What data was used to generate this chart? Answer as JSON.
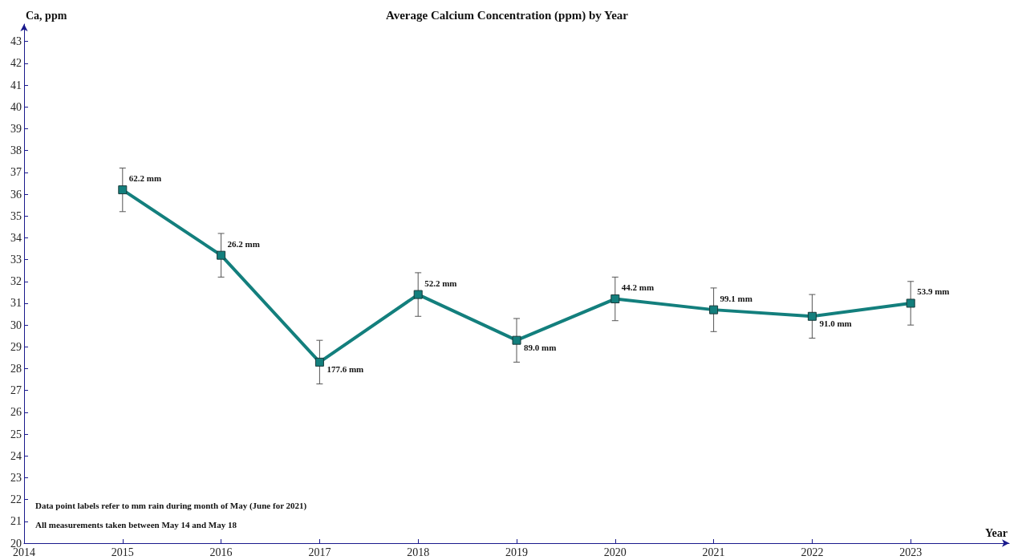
{
  "chart_data": {
    "type": "line",
    "title": "Average Calcium Concentration (ppm) by Year",
    "xlabel": "Year",
    "ylabel": "Ca, ppm",
    "x": [
      2015,
      2016,
      2017,
      2018,
      2019,
      2020,
      2021,
      2022,
      2023
    ],
    "series": [
      {
        "color": "#137f7d",
        "values": [
          36.2,
          33.2,
          28.3,
          31.4,
          29.3,
          31.2,
          30.7,
          30.4,
          31.0
        ],
        "errors": [
          1.0,
          1.0,
          1.0,
          1.0,
          1.0,
          1.0,
          1.0,
          1.0,
          1.0
        ]
      }
    ],
    "xlim": [
      2014,
      2024
    ],
    "xticks": [
      2014,
      2015,
      2016,
      2017,
      2018,
      2019,
      2020,
      2021,
      2022,
      2023
    ],
    "ylim": [
      20,
      43.8
    ],
    "yticks": [
      20,
      21,
      22,
      23,
      24,
      25,
      26,
      27,
      28,
      29,
      30,
      31,
      32,
      33,
      34,
      35,
      36,
      37,
      38,
      39,
      40,
      41,
      42,
      43
    ],
    "marker": "square",
    "line_style": "solid",
    "grid": false,
    "annotations": [
      {
        "text": "62.2 mm",
        "x": 2015,
        "y": 36.2
      },
      {
        "text": "26.2 mm",
        "x": 2016,
        "y": 33.2
      },
      {
        "text": "177.6 mm",
        "x": 2017,
        "y": 28.3
      },
      {
        "text": "52.2 mm",
        "x": 2018,
        "y": 31.4
      },
      {
        "text": "89.0 mm",
        "x": 2019,
        "y": 29.3
      },
      {
        "text": "44.2 mm",
        "x": 2020,
        "y": 31.2
      },
      {
        "text": "99.1 mm",
        "x": 2021,
        "y": 30.7
      },
      {
        "text": "91.0 mm",
        "x": 2022,
        "y": 30.4
      },
      {
        "text": "53.9 mm",
        "x": 2023,
        "y": 31.0
      },
      "Data point labels refer to mm rain during month of May (June for 2021)",
      "All measurements taken between May 14 and May 18"
    ]
  }
}
